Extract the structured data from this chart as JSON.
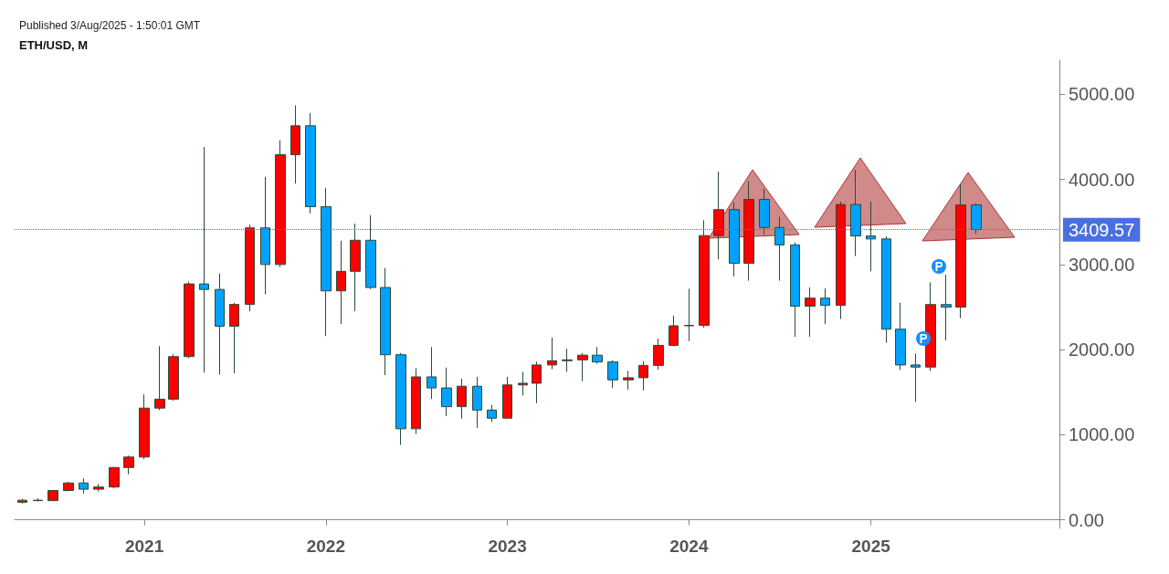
{
  "chart_data": {
    "type": "candlestick",
    "title": "ETH/USD, M",
    "annotations": [
      "Published 3/Aug/2025 - 1:50:01 GMT"
    ],
    "x": [
      "2020-05",
      "2020-06",
      "2020-07",
      "2020-08",
      "2020-09",
      "2020-10",
      "2020-11",
      "2020-12",
      "2021-01",
      "2021-02",
      "2021-03",
      "2021-04",
      "2021-05",
      "2021-06",
      "2021-07",
      "2021-08",
      "2021-09",
      "2021-10",
      "2021-11",
      "2021-12",
      "2022-01",
      "2022-02",
      "2022-03",
      "2022-04",
      "2022-05",
      "2022-06",
      "2022-07",
      "2022-08",
      "2022-09",
      "2022-10",
      "2022-11",
      "2022-12",
      "2023-01",
      "2023-02",
      "2023-03",
      "2023-04",
      "2023-05",
      "2023-06",
      "2023-07",
      "2023-08",
      "2023-09",
      "2023-10",
      "2023-11",
      "2023-12",
      "2024-01",
      "2024-02",
      "2024-03",
      "2024-04",
      "2024-05",
      "2024-06",
      "2024-07",
      "2024-08",
      "2024-09",
      "2024-10",
      "2024-11",
      "2024-12",
      "2025-01",
      "2025-02",
      "2025-03",
      "2025-04",
      "2025-05",
      "2025-06",
      "2025-07",
      "2025-08"
    ],
    "ohlc": [
      [
        207,
        246,
        193,
        231
      ],
      [
        231,
        253,
        217,
        226
      ],
      [
        226,
        349,
        225,
        345
      ],
      [
        345,
        446,
        336,
        434
      ],
      [
        434,
        488,
        310,
        360
      ],
      [
        360,
        421,
        334,
        386
      ],
      [
        386,
        623,
        370,
        615
      ],
      [
        615,
        755,
        535,
        738
      ],
      [
        738,
        1475,
        715,
        1313
      ],
      [
        1313,
        2040,
        1290,
        1418
      ],
      [
        1418,
        1945,
        1400,
        1918
      ],
      [
        1918,
        2797,
        1900,
        2772
      ],
      [
        2772,
        4380,
        1730,
        2707
      ],
      [
        2707,
        2895,
        1705,
        2275
      ],
      [
        2275,
        2550,
        1720,
        2531
      ],
      [
        2531,
        3470,
        2450,
        3430
      ],
      [
        3430,
        4030,
        2650,
        3000
      ],
      [
        3000,
        4460,
        2970,
        4290
      ],
      [
        4290,
        4870,
        3950,
        4630
      ],
      [
        4630,
        4780,
        3600,
        3680
      ],
      [
        3680,
        3900,
        2160,
        2690
      ],
      [
        2690,
        3280,
        2300,
        2920
      ],
      [
        2920,
        3480,
        2450,
        3285
      ],
      [
        3285,
        3580,
        2710,
        2730
      ],
      [
        2730,
        2960,
        1700,
        1940
      ],
      [
        1940,
        1960,
        880,
        1070
      ],
      [
        1070,
        1780,
        1010,
        1680
      ],
      [
        1680,
        2030,
        1420,
        1550
      ],
      [
        1550,
        1790,
        1220,
        1330
      ],
      [
        1330,
        1660,
        1190,
        1570
      ],
      [
        1570,
        1680,
        1080,
        1290
      ],
      [
        1290,
        1350,
        1150,
        1195
      ],
      [
        1195,
        1680,
        1190,
        1585
      ],
      [
        1585,
        1740,
        1460,
        1605
      ],
      [
        1605,
        1860,
        1370,
        1820
      ],
      [
        1820,
        2140,
        1770,
        1870
      ],
      [
        1870,
        2010,
        1740,
        1880
      ],
      [
        1880,
        1960,
        1630,
        1935
      ],
      [
        1935,
        2030,
        1835,
        1855
      ],
      [
        1855,
        1875,
        1550,
        1645
      ],
      [
        1645,
        1750,
        1530,
        1670
      ],
      [
        1670,
        1865,
        1520,
        1815
      ],
      [
        1815,
        2130,
        1765,
        2050
      ],
      [
        2050,
        2400,
        2040,
        2280
      ],
      [
        2280,
        2715,
        2100,
        2285
      ],
      [
        2285,
        3520,
        2260,
        3340
      ],
      [
        3340,
        4090,
        3060,
        3645
      ],
      [
        3645,
        3730,
        2860,
        3015
      ],
      [
        3015,
        3980,
        2810,
        3765
      ],
      [
        3765,
        3890,
        3350,
        3435
      ],
      [
        3435,
        3560,
        2810,
        3230
      ],
      [
        3230,
        3260,
        2150,
        2510
      ],
      [
        2510,
        2730,
        2150,
        2605
      ],
      [
        2605,
        2720,
        2300,
        2520
      ],
      [
        2520,
        3740,
        2360,
        3705
      ],
      [
        3705,
        4110,
        3100,
        3335
      ],
      [
        3335,
        3740,
        2920,
        3300
      ],
      [
        3300,
        3330,
        2080,
        2240
      ],
      [
        2240,
        2550,
        1760,
        1820
      ],
      [
        1820,
        1955,
        1385,
        1795
      ],
      [
        1795,
        2790,
        1750,
        2530
      ],
      [
        2530,
        2880,
        2110,
        2500
      ],
      [
        2500,
        3940,
        2370,
        3700
      ],
      [
        3700,
        3720,
        3360,
        3410
      ]
    ],
    "colors": [
      "#ff0000",
      "#00a2ff",
      "#ff0000",
      "#ff0000",
      "#00a2ff",
      "#ff0000",
      "#ff0000",
      "#ff0000",
      "#ff0000",
      "#ff0000",
      "#ff0000",
      "#ff0000",
      "#00a2ff",
      "#00a2ff",
      "#ff0000",
      "#ff0000",
      "#00a2ff",
      "#ff0000",
      "#ff0000",
      "#00a2ff",
      "#00a2ff",
      "#ff0000",
      "#ff0000",
      "#00a2ff",
      "#00a2ff",
      "#00a2ff",
      "#ff0000",
      "#00a2ff",
      "#00a2ff",
      "#ff0000",
      "#00a2ff",
      "#00a2ff",
      "#ff0000",
      "#ff0000",
      "#ff0000",
      "#ff0000",
      "#ff0000",
      "#ff0000",
      "#00a2ff",
      "#00a2ff",
      "#ff0000",
      "#ff0000",
      "#ff0000",
      "#ff0000",
      "#ff0000",
      "#ff0000",
      "#ff0000",
      "#00a2ff",
      "#ff0000",
      "#00a2ff",
      "#00a2ff",
      "#00a2ff",
      "#ff0000",
      "#00a2ff",
      "#ff0000",
      "#00a2ff",
      "#00a2ff",
      "#00a2ff",
      "#00a2ff",
      "#00a2ff",
      "#ff0000",
      "#00a2ff",
      "#ff0000",
      "#00a2ff"
    ],
    "xlim": [
      "2020-04-15",
      "2026-01-15"
    ],
    "xticks": [
      "2021",
      "2022",
      "2023",
      "2024",
      "2025"
    ],
    "ylim": [
      -100,
      5400
    ],
    "yticks": [
      {
        "value": 0,
        "label": "0.00"
      },
      {
        "value": 1000,
        "label": "1000.00"
      },
      {
        "value": 2000,
        "label": "2000.00"
      },
      {
        "value": 3000,
        "label": "3000.00"
      },
      {
        "value": 4000,
        "label": "4000.00"
      },
      {
        "value": 5000,
        "label": "5000.00"
      }
    ],
    "ref_lines": [
      {
        "axis": "y",
        "value": 3409.57,
        "label": "3409.57",
        "color": "#4a6fe0",
        "line_style": "dotted"
      }
    ],
    "grid": false
  }
}
